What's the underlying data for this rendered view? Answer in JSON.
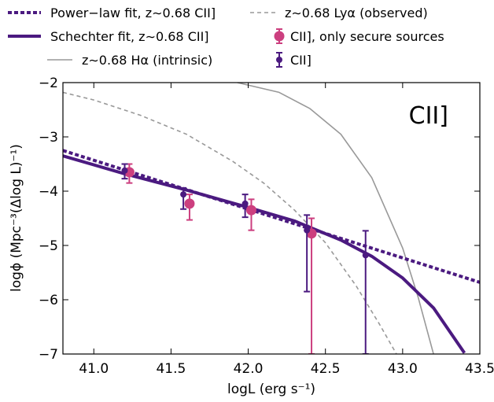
{
  "chart_data": {
    "type": "line",
    "panel_label": "CII]",
    "xlabel": "logL (erg s⁻¹)",
    "ylabel": "logϕ (Mpc⁻³(Δlog L)⁻¹)",
    "xlim": [
      40.8,
      43.5
    ],
    "ylim": [
      -7,
      -2
    ],
    "xticks": [
      "41.0",
      "41.5",
      "42.0",
      "42.5",
      "43.0",
      "43.5"
    ],
    "yticks": [
      "−2",
      "−3",
      "−4",
      "−5",
      "−6",
      "−7"
    ],
    "legend_position": "top",
    "series": [
      {
        "name": "Power−law fit, z∼0.68 CII]",
        "kind": "line",
        "style": "dotted",
        "color": "#4b1a80",
        "x": [
          40.8,
          43.5
        ],
        "y": [
          -3.25,
          -5.68
        ]
      },
      {
        "name": "Schechter fit, z∼0.68 CII]",
        "kind": "line",
        "style": "solid",
        "color": "#4b1a80",
        "x": [
          40.8,
          41.2,
          41.6,
          42.0,
          42.3,
          42.6,
          42.8,
          43.0,
          43.2,
          43.4
        ],
        "y": [
          -3.35,
          -3.68,
          -3.98,
          -4.3,
          -4.55,
          -4.9,
          -5.2,
          -5.6,
          -6.15,
          -6.98
        ]
      },
      {
        "name": "z∼0.68 Hα (intrinsic)",
        "kind": "line",
        "style": "solid",
        "color": "#999999",
        "x": [
          41.93,
          42.2,
          42.4,
          42.6,
          42.8,
          43.0,
          43.1,
          43.2
        ],
        "y": [
          -2.0,
          -2.18,
          -2.48,
          -2.95,
          -3.75,
          -5.05,
          -5.95,
          -7.0
        ]
      },
      {
        "name": "z∼0.68 Lyα (observed)",
        "kind": "line",
        "style": "dashed",
        "color": "#999999",
        "x": [
          40.8,
          41.0,
          41.3,
          41.6,
          41.9,
          42.1,
          42.3,
          42.5,
          42.7,
          42.85,
          42.96
        ],
        "y": [
          -2.18,
          -2.32,
          -2.6,
          -2.95,
          -3.45,
          -3.85,
          -4.35,
          -4.95,
          -5.75,
          -6.45,
          -7.0
        ]
      },
      {
        "name": "CII], only secure sources",
        "kind": "points",
        "color": "#cc3f7f",
        "x": [
          41.23,
          41.62,
          42.02,
          42.41
        ],
        "y": [
          -3.65,
          -4.23,
          -4.35,
          -4.78
        ],
        "yerr_low": [
          0.2,
          0.3,
          0.37,
          2.22
        ],
        "yerr_high": [
          0.15,
          0.17,
          0.2,
          0.28
        ]
      },
      {
        "name": "CII]",
        "kind": "points",
        "color": "#4b1a80",
        "x": [
          41.2,
          41.58,
          41.98,
          42.38,
          42.76
        ],
        "y": [
          -3.62,
          -4.06,
          -4.23,
          -4.72,
          -5.18
        ],
        "yerr_low": [
          0.15,
          0.27,
          0.25,
          1.13,
          1.82
        ],
        "yerr_high": [
          0.12,
          0.12,
          0.17,
          0.28,
          0.45
        ]
      }
    ]
  }
}
